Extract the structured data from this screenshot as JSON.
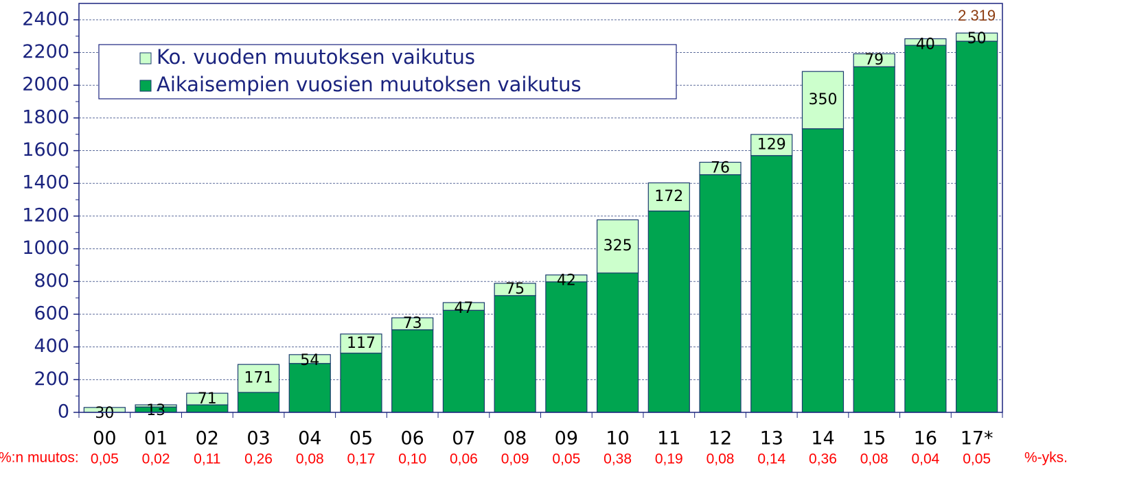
{
  "chart_data": {
    "type": "stacked_bar",
    "categories": [
      "00",
      "01",
      "02",
      "03",
      "04",
      "05",
      "06",
      "07",
      "08",
      "09",
      "10",
      "11",
      "12",
      "13",
      "14",
      "15",
      "16",
      "17*"
    ],
    "series": [
      {
        "name": "Aikaisempien vuosien muutoksen vaikutus",
        "color": "#00a550",
        "values": [
          0,
          33,
          46,
          122,
          299,
          362,
          505,
          624,
          714,
          798,
          852,
          1231,
          1453,
          1570,
          1734,
          2113,
          2244,
          2269
        ]
      },
      {
        "name": "Ko. vuoden muutoksen vaikutus",
        "color": "#ccffcc",
        "values": [
          30,
          13,
          71,
          171,
          54,
          117,
          73,
          47,
          75,
          42,
          325,
          172,
          76,
          129,
          350,
          79,
          40,
          50
        ],
        "labeled": true
      }
    ],
    "ylim": [
      0,
      2500
    ],
    "yticks": [
      0,
      200,
      400,
      600,
      800,
      1000,
      1200,
      1400,
      1600,
      1800,
      2000,
      2200,
      2400
    ],
    "grid": true,
    "total_annotation": "2 319",
    "row_label": "%:n muutos:",
    "row_values": [
      "0,05",
      "0,02",
      "0,11",
      "0,26",
      "0,08",
      "0,17",
      "0,10",
      "0,06",
      "0,09",
      "0,05",
      "0,38",
      "0,19",
      "0,08",
      "0,14",
      "0,36",
      "0,08",
      "0,04",
      "0,05"
    ],
    "row_unit": "%-yks."
  }
}
